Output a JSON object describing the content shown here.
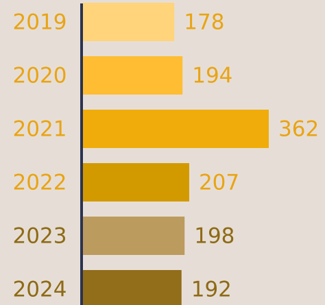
{
  "chart_data": {
    "type": "bar",
    "orientation": "horizontal",
    "categories": [
      "2019",
      "2020",
      "2021",
      "2022",
      "2023",
      "2024"
    ],
    "values": [
      178,
      194,
      362,
      207,
      198,
      192
    ],
    "colors": [
      "#ffd47a",
      "#ffbd33",
      "#f0ac0a",
      "#d39a00",
      "#bc9b5e",
      "#926d1a"
    ],
    "label_colors": [
      "#e9a414",
      "#e9a414",
      "#e9a414",
      "#e9a414",
      "#8e6a15",
      "#8e6a15"
    ],
    "axis_color": "#2b3350"
  }
}
